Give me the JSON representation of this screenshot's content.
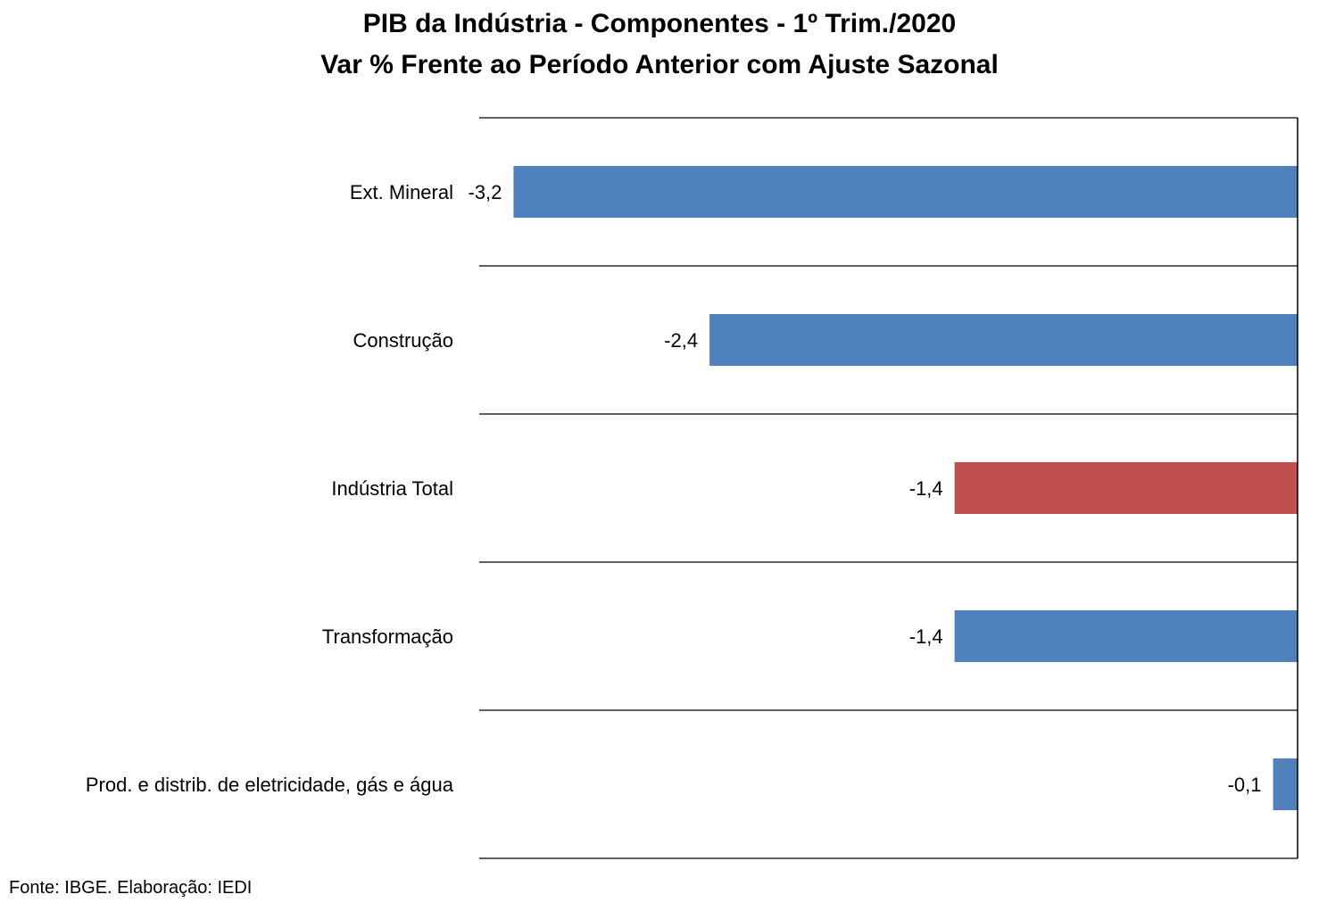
{
  "chart_data": {
    "type": "bar",
    "orientation": "horizontal",
    "title": "PIB da Indústria - Componentes - 1º Trim./2020",
    "subtitle": "Var % Frente ao Período Anterior com Ajuste Sazonal",
    "categories": [
      "Ext. Mineral",
      "Construção",
      "Indústria Total",
      "Transformação",
      "Prod. e distrib. de eletricidade, gás e água"
    ],
    "values": [
      -3.2,
      -2.4,
      -1.4,
      -1.4,
      -0.1
    ],
    "value_labels": [
      "-3,2",
      "-2,4",
      "-1,4",
      "-1,4",
      "-0,1"
    ],
    "bar_colors": [
      "#4F81BD",
      "#4F81BD",
      "#C0504D",
      "#4F81BD",
      "#4F81BD"
    ],
    "xlim": [
      -3.34,
      0
    ],
    "grid": true,
    "legend": "none",
    "source": "Fonte: IBGE. Elaboração: IEDI"
  }
}
